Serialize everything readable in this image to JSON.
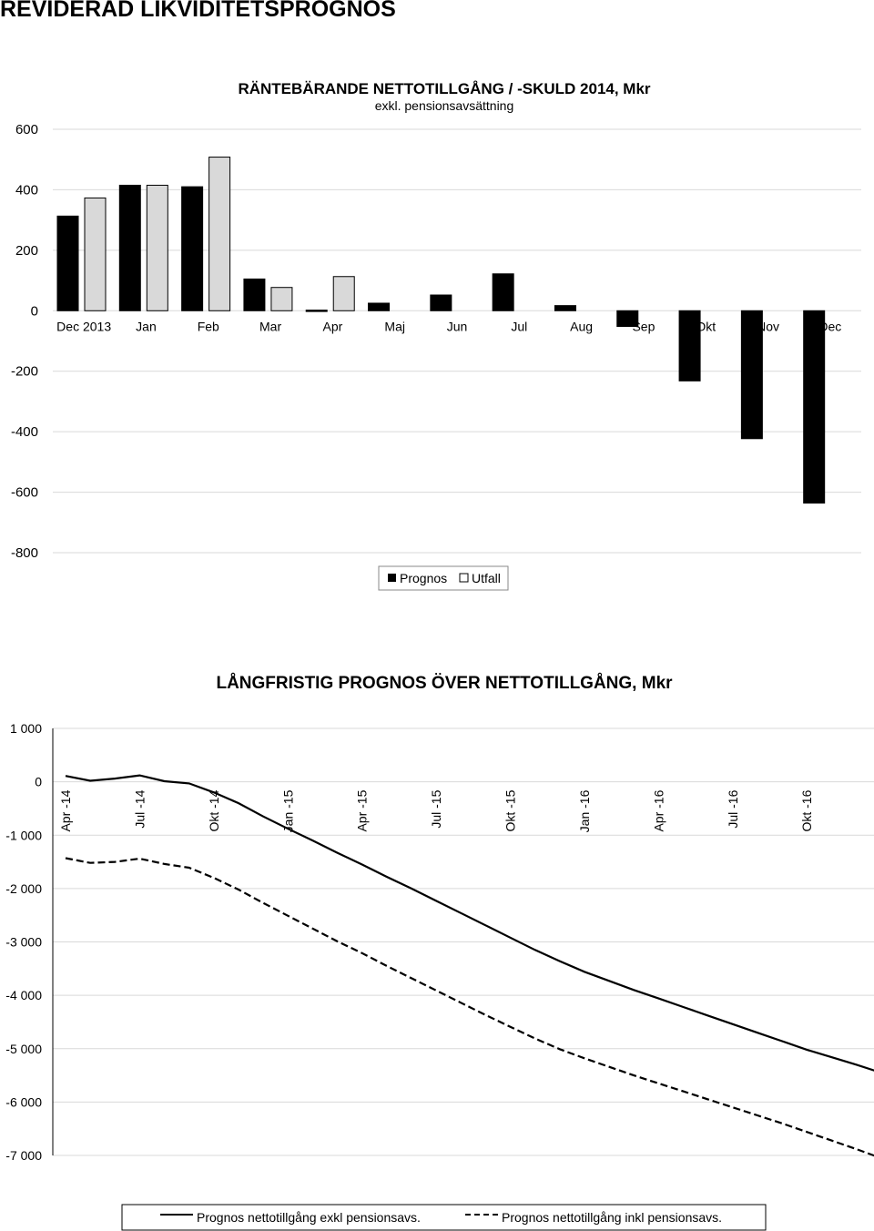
{
  "page": {
    "title": "REVIDERAD LIKVIDITETSPROGNOS"
  },
  "chart_data": [
    {
      "type": "bar",
      "title": "RÄNTEBÄRANDE NETTOTILLGÅNG / -SKULD 2014, Mkr",
      "subtitle": "exkl. pensionsavsättning",
      "categories": [
        "Dec 2013",
        "Jan",
        "Feb",
        "Mar",
        "Apr",
        "Maj",
        "Jun",
        "Jul",
        "Aug",
        "Sep",
        "Okt",
        "Nov",
        "Dec"
      ],
      "series": [
        {
          "name": "Prognos",
          "color": "#000000",
          "values": [
            313,
            415,
            410,
            105,
            2,
            25,
            52,
            122,
            17,
            -52,
            -232,
            -423,
            -636
          ]
        },
        {
          "name": "Utfall",
          "color": "#d9d9d9",
          "values": [
            373,
            415,
            508,
            77,
            113,
            null,
            null,
            null,
            null,
            null,
            null,
            null,
            null
          ]
        }
      ],
      "ylim": [
        -800,
        600
      ],
      "yticks": [
        600,
        400,
        200,
        0,
        -200,
        -400,
        -600,
        -800
      ],
      "legend": "bottom",
      "grid": true
    },
    {
      "type": "line",
      "title": "LÅNGFRISTIG PROGNOS ÖVER NETTOTILLGÅNG, Mkr",
      "x_tick_labels": [
        "Apr -14",
        "Jul -14",
        "Okt -14",
        "Jan -15",
        "Apr -15",
        "Jul -15",
        "Okt -15",
        "Jan -16",
        "Apr -16",
        "Jul -16",
        "Okt -16"
      ],
      "x_months": [
        "Apr -14",
        "Maj -14",
        "Jun -14",
        "Jul -14",
        "Aug -14",
        "Sep -14",
        "Okt -14",
        "Nov -14",
        "Dec -14",
        "Jan -15",
        "Feb -15",
        "Mar -15",
        "Apr -15",
        "Maj -15",
        "Jun -15",
        "Jul -15",
        "Aug -15",
        "Sep -15",
        "Okt -15",
        "Nov -15",
        "Dec -15",
        "Jan -16",
        "Feb -16",
        "Mar -16",
        "Apr -16",
        "Maj -16",
        "Jun -16",
        "Jul -16",
        "Aug -16",
        "Sep -16",
        "Okt -16",
        "Nov -16",
        "Dec -16",
        "Jan -17"
      ],
      "series": [
        {
          "name": "Prognos nettotillgång exkl pensionsavs.",
          "style": "solid",
          "values": [
            110,
            20,
            60,
            120,
            10,
            -30,
            -200,
            -400,
            -650,
            -880,
            -1100,
            -1330,
            -1550,
            -1780,
            -2000,
            -2230,
            -2460,
            -2690,
            -2920,
            -3150,
            -3360,
            -3560,
            -3730,
            -3900,
            -4060,
            -4220,
            -4380,
            -4540,
            -4700,
            -4860,
            -5020,
            -5160,
            -5300,
            -5450
          ]
        },
        {
          "name": "Prognos nettotillgång inkl pensionsavs.",
          "style": "dashed",
          "values": [
            -1430,
            -1520,
            -1500,
            -1440,
            -1540,
            -1610,
            -1800,
            -2020,
            -2270,
            -2510,
            -2750,
            -2990,
            -3210,
            -3450,
            -3680,
            -3910,
            -4140,
            -4370,
            -4590,
            -4810,
            -5010,
            -5180,
            -5340,
            -5500,
            -5650,
            -5800,
            -5950,
            -6100,
            -6250,
            -6400,
            -6560,
            -6720,
            -6880,
            -7050
          ]
        }
      ],
      "ylim": [
        -7000,
        1000
      ],
      "yticks": [
        "1 000",
        "0",
        "-1 000",
        "-2 000",
        "-3 000",
        "-4 000",
        "-5 000",
        "-6 000",
        "-7 000"
      ],
      "legend": "bottom",
      "grid": true
    }
  ]
}
